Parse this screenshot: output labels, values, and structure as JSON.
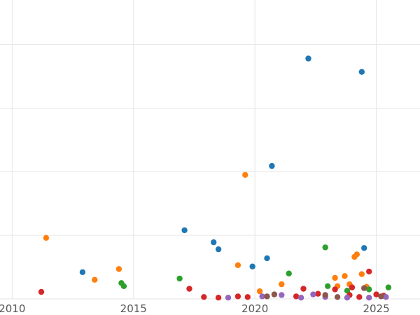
{
  "chart_data": {
    "type": "scatter",
    "title": "",
    "xlabel": "",
    "ylabel": "",
    "xlim": [
      2009.5,
      2026.8
    ],
    "ylim": [
      0,
      4.7
    ],
    "x_ticks": [
      2010,
      2015,
      2020,
      2025
    ],
    "x_tick_labels": [
      "2010",
      "2015",
      "2020",
      "2025"
    ],
    "y_gridlines": [
      0,
      1,
      2,
      3,
      4
    ],
    "grid": true,
    "legend": "none",
    "series": [
      {
        "color": "#1f77b4",
        "points": [
          [
            2012.9,
            0.42
          ],
          [
            2017.1,
            1.08
          ],
          [
            2018.3,
            0.89
          ],
          [
            2018.5,
            0.78
          ],
          [
            2019.9,
            0.51
          ],
          [
            2020.5,
            0.64
          ],
          [
            2020.7,
            2.09
          ],
          [
            2022.2,
            3.78
          ],
          [
            2024.4,
            3.57
          ],
          [
            2024.5,
            0.8
          ]
        ]
      },
      {
        "color": "#ff7f0e",
        "points": [
          [
            2011.4,
            0.96
          ],
          [
            2013.4,
            0.3
          ],
          [
            2014.4,
            0.47
          ],
          [
            2019.3,
            0.53
          ],
          [
            2019.6,
            1.95
          ],
          [
            2020.2,
            0.12
          ],
          [
            2021.1,
            0.23
          ],
          [
            2023.3,
            0.33
          ],
          [
            2023.4,
            0.2
          ],
          [
            2023.7,
            0.36
          ],
          [
            2023.9,
            0.23
          ],
          [
            2024.1,
            0.66
          ],
          [
            2024.2,
            0.7
          ],
          [
            2024.4,
            0.39
          ],
          [
            2024.6,
            0.19
          ]
        ]
      },
      {
        "color": "#2ca02c",
        "points": [
          [
            2014.5,
            0.25
          ],
          [
            2014.6,
            0.2
          ],
          [
            2016.9,
            0.32
          ],
          [
            2021.4,
            0.4
          ],
          [
            2022.9,
            0.81
          ],
          [
            2023.0,
            0.2
          ],
          [
            2023.8,
            0.13
          ],
          [
            2024.7,
            0.15
          ],
          [
            2025.5,
            0.18
          ]
        ]
      },
      {
        "color": "#d62728",
        "points": [
          [
            2011.2,
            0.11
          ],
          [
            2017.3,
            0.16
          ],
          [
            2017.9,
            0.03
          ],
          [
            2018.5,
            0.02
          ],
          [
            2019.3,
            0.04
          ],
          [
            2019.7,
            0.03
          ],
          [
            2021.7,
            0.04
          ],
          [
            2022.0,
            0.16
          ],
          [
            2022.6,
            0.08
          ],
          [
            2023.3,
            0.15
          ],
          [
            2023.9,
            0.06
          ],
          [
            2024.0,
            0.18
          ],
          [
            2024.3,
            0.03
          ],
          [
            2024.7,
            0.43
          ],
          [
            2025.0,
            0.07
          ],
          [
            2025.3,
            0.05
          ]
        ]
      },
      {
        "color": "#9467bd",
        "points": [
          [
            2018.9,
            0.02
          ],
          [
            2020.3,
            0.04
          ],
          [
            2021.1,
            0.06
          ],
          [
            2021.9,
            0.02
          ],
          [
            2022.4,
            0.07
          ],
          [
            2022.9,
            0.03
          ],
          [
            2023.8,
            0.02
          ],
          [
            2024.7,
            0.02
          ],
          [
            2025.4,
            0.03
          ]
        ]
      },
      {
        "color": "#8c564b",
        "points": [
          [
            2020.5,
            0.04
          ],
          [
            2020.8,
            0.07
          ],
          [
            2022.9,
            0.06
          ],
          [
            2023.4,
            0.03
          ],
          [
            2024.5,
            0.17
          ],
          [
            2025.2,
            0.04
          ]
        ]
      }
    ]
  }
}
